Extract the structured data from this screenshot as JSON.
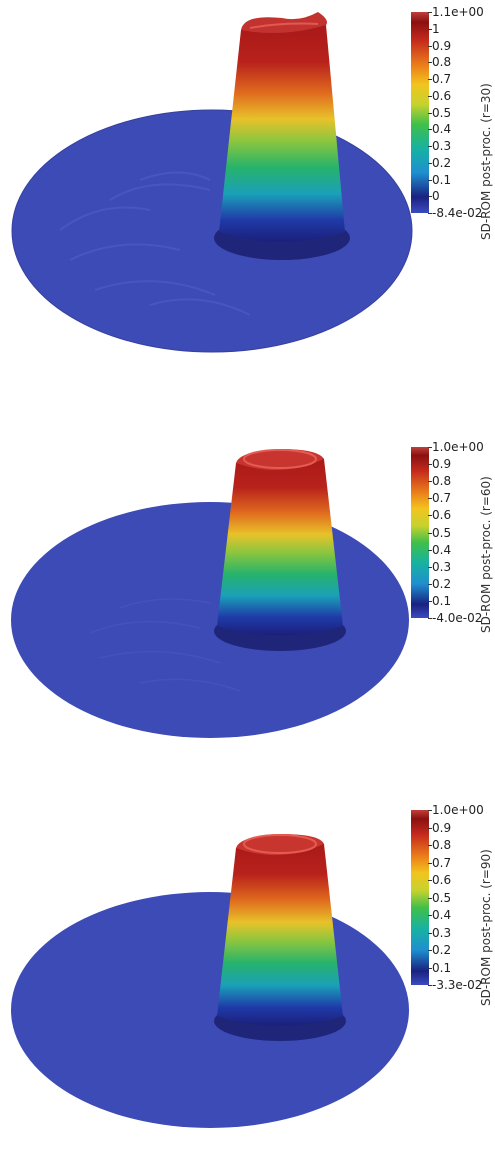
{
  "panels": [
    {
      "label": "SD-ROM post-proc. (r=30)",
      "ticks": [
        "1.1e+00",
        "1",
        "0.9",
        "0.8",
        "0.7",
        "0.6",
        "0.5",
        "0.4",
        "0.3",
        "0.2",
        "0.1",
        "0",
        "-8.4e-02"
      ]
    },
    {
      "label": "SD-ROM post-proc. (r=60)",
      "ticks": [
        "1.0e+00",
        "0.9",
        "0.8",
        "0.7",
        "0.6",
        "0.5",
        "0.4",
        "0.3",
        "0.2",
        "0.1",
        "-4.0e-02"
      ]
    },
    {
      "label": "SD-ROM post-proc. (r=90)",
      "ticks": [
        "1.0e+00",
        "0.9",
        "0.8",
        "0.7",
        "0.6",
        "0.5",
        "0.4",
        "0.3",
        "0.2",
        "0.1",
        "-3.3e-02"
      ]
    }
  ],
  "colormap": [
    "#3b4cc0",
    "#1a237e",
    "#2a9df4",
    "#19b5a5",
    "#3ec04a",
    "#b7d433",
    "#f5d01e",
    "#f08a1a",
    "#d0311e",
    "#8b0f0f",
    "#c23a36"
  ]
}
